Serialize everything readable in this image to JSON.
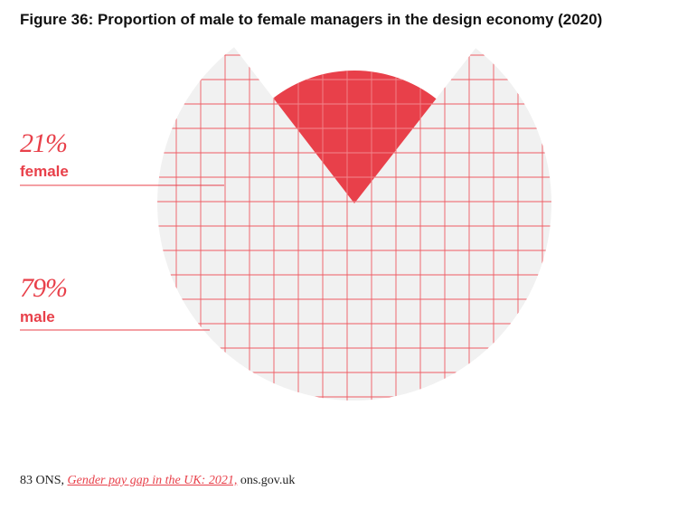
{
  "header": {
    "title": "Figure 36: Proportion of male to female managers in the design economy (2020)"
  },
  "chart_data": {
    "type": "pie",
    "title": "Figure 36: Proportion of male to female managers in the design economy (2020)",
    "slices": [
      {
        "label": "female",
        "value": 21,
        "display": "21%",
        "color": "#e8404a"
      },
      {
        "label": "male",
        "value": 79,
        "display": "79%",
        "color": "#f1f1f1"
      }
    ]
  },
  "footnote": {
    "number": "83",
    "org": "ONS,",
    "link_text": "Gender pay gap in the UK: 2021,",
    "domain": "ons.gov.uk"
  }
}
